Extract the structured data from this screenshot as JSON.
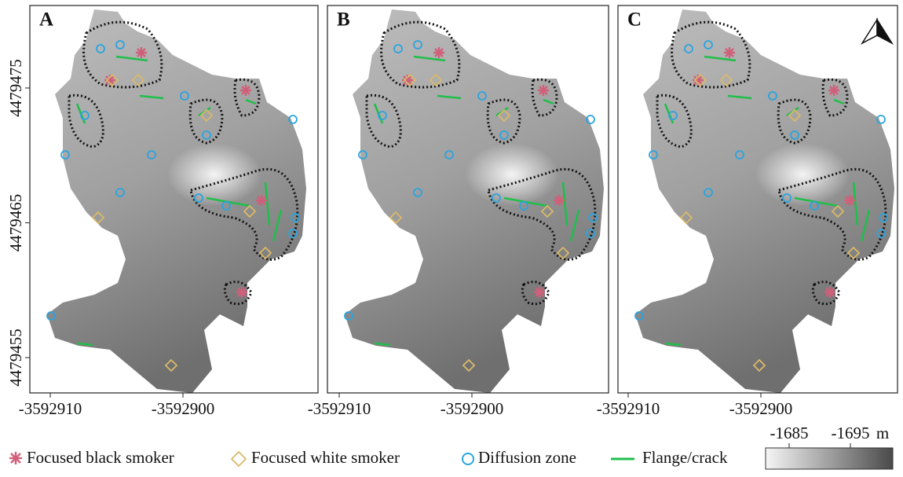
{
  "map": {
    "panels": [
      {
        "label": "A",
        "xlim": [
          -3592911.54,
          -3592889.82
        ],
        "ylim": [
          4479452.38,
          4479481.12
        ],
        "xticks": [
          -3592910,
          -3592900
        ],
        "yticks": [
          4479475,
          4479465,
          4479455
        ]
      },
      {
        "label": "B",
        "xlim": [
          -3592910.89,
          -3592889.7
        ],
        "ylim": [
          4479452.38,
          4479481.12
        ],
        "xticks": [
          -3592910,
          -3592900
        ]
      },
      {
        "label": "C",
        "xlim": [
          -3592910.77,
          -3592889.7
        ],
        "ylim": [
          4479452.38,
          4479481.12
        ],
        "xticks": [
          -3592910,
          -3592900
        ]
      }
    ],
    "legend": [
      "Focused black smoker",
      "Focused white smoker",
      "Diffusion zone",
      "Flange/crack"
    ],
    "colorbar": {
      "labels": [
        "-1685",
        "-1695"
      ],
      "unit": "m"
    }
  }
}
